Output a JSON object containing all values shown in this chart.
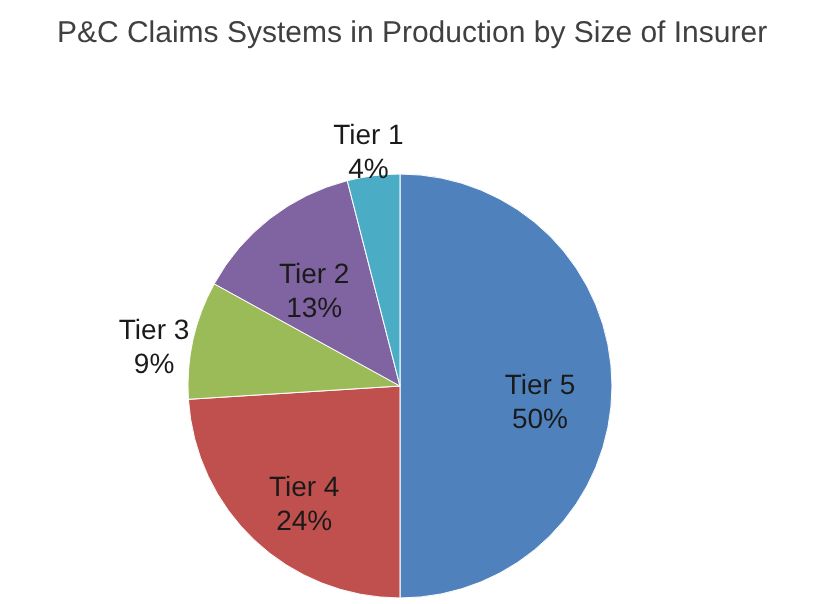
{
  "chart_data": {
    "type": "pie",
    "title": "P&C Claims Systems in Production by Size of Insurer",
    "categories": [
      "Tier 5",
      "Tier 4",
      "Tier 3",
      "Tier 2",
      "Tier 1"
    ],
    "values": [
      50,
      24,
      9,
      13,
      4
    ],
    "value_labels": [
      "50%",
      "24%",
      "9%",
      "13%",
      "4%"
    ],
    "colors": [
      "#4f81bd",
      "#c0504d",
      "#9bbb59",
      "#8064a2",
      "#4bacc6"
    ]
  }
}
